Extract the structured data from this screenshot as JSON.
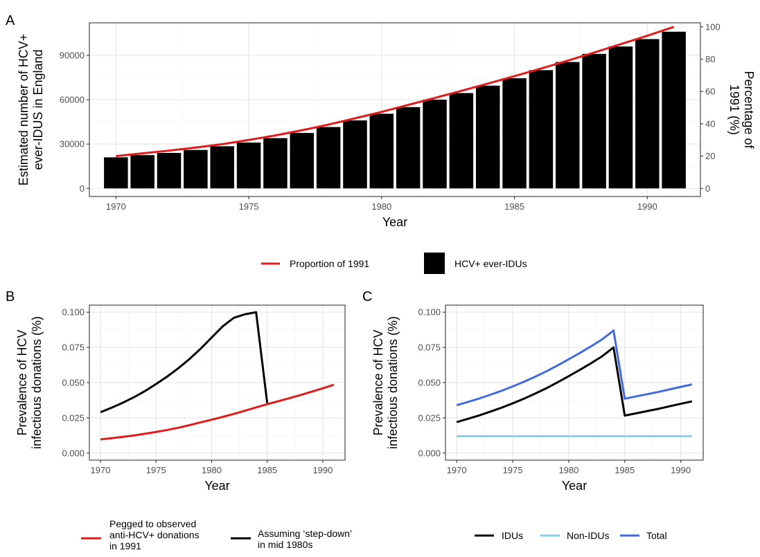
{
  "chart_data": [
    {
      "panel_label": "A",
      "type": "bar",
      "xlabel": "Year",
      "ylabel_lines": [
        "Estimated number of HCV+",
        "ever-IDUS in England"
      ],
      "y2label_lines": [
        "Percentage of",
        "1991 (%)"
      ],
      "xlim": [
        1969,
        1992
      ],
      "ylim": [
        -5500,
        112000
      ],
      "y2lim": [
        -5,
        102.5
      ],
      "xticks": [
        1970,
        1975,
        1980,
        1985,
        1990
      ],
      "xtick_labels": [
        "1970",
        "1975",
        "1980",
        "1985",
        "1990"
      ],
      "yticks": [
        0,
        30000,
        60000,
        90000
      ],
      "ytick_labels": [
        "0",
        "30000",
        "60000",
        "90000"
      ],
      "y2ticks": [
        0,
        20,
        40,
        60,
        80,
        100
      ],
      "y2tick_labels": [
        "0",
        "20",
        "40",
        "60",
        "80",
        "100"
      ],
      "grid": true,
      "legend_position": "bottom",
      "categories": [
        1970,
        1971,
        1972,
        1973,
        1974,
        1975,
        1976,
        1977,
        1978,
        1979,
        1980,
        1981,
        1982,
        1983,
        1984,
        1985,
        1986,
        1987,
        1988,
        1989,
        1990,
        1991
      ],
      "series": [
        {
          "name": "HCV+ ever-IDUs",
          "type": "bar",
          "color": "#000000",
          "values": [
            21000,
            22500,
            24000,
            26000,
            28500,
            31000,
            34000,
            37500,
            41500,
            46000,
            50500,
            55000,
            60000,
            64500,
            69500,
            74500,
            80000,
            85500,
            91000,
            96000,
            101000,
            106000
          ]
        },
        {
          "name": "Proportion of 1991",
          "type": "line",
          "axis": "right",
          "color": "#e31a1c",
          "values": [
            20,
            21.7,
            23.4,
            25.3,
            27.4,
            30,
            32.8,
            36,
            39.5,
            43.4,
            47.4,
            51.7,
            56,
            60.4,
            64.9,
            69.5,
            74.2,
            79.1,
            84.1,
            89.3,
            94.5,
            100
          ]
        }
      ]
    },
    {
      "panel_label": "B",
      "type": "line",
      "xlabel": "Year",
      "ylabel_lines": [
        "Prevalence of HCV",
        "infectious donations (%)"
      ],
      "xlim": [
        1969,
        1992
      ],
      "ylim": [
        -0.005,
        0.105
      ],
      "xticks": [
        1970,
        1975,
        1980,
        1985,
        1990
      ],
      "xtick_labels": [
        "1970",
        "1975",
        "1980",
        "1985",
        "1990"
      ],
      "yticks": [
        0,
        0.025,
        0.05,
        0.075,
        0.1
      ],
      "ytick_labels": [
        "0.000",
        "0.025",
        "0.050",
        "0.075",
        "0.100"
      ],
      "grid": true,
      "legend_position": "bottom",
      "series": [
        {
          "name": "Pegged to observed anti-HCV+ donations in 1991",
          "legend_lines": [
            "Pegged to observed",
            "anti-HCV+ donations",
            "in 1991"
          ],
          "color": "#e31a1c",
          "x": [
            1970,
            1971,
            1972,
            1973,
            1974,
            1975,
            1976,
            1977,
            1978,
            1979,
            1980,
            1981,
            1982,
            1983,
            1984,
            1985,
            1986,
            1987,
            1988,
            1989,
            1990,
            1991
          ],
          "y": [
            0.0097,
            0.0106,
            0.0115,
            0.0125,
            0.0137,
            0.015,
            0.0164,
            0.018,
            0.0198,
            0.0218,
            0.0237,
            0.0257,
            0.0278,
            0.0301,
            0.0324,
            0.0347,
            0.0368,
            0.039,
            0.0412,
            0.0436,
            0.046,
            0.0485
          ]
        },
        {
          "name": "Assuming 'step-down' in mid 1980s",
          "legend_lines": [
            "Assuming ‘step-down’",
            "in mid 1980s"
          ],
          "color": "#000000",
          "x": [
            1970,
            1971,
            1972,
            1973,
            1974,
            1975,
            1976,
            1977,
            1978,
            1979,
            1980,
            1981,
            1982,
            1983,
            1984,
            1985
          ],
          "y": [
            0.029,
            0.0322,
            0.0357,
            0.0396,
            0.044,
            0.049,
            0.0543,
            0.0602,
            0.0667,
            0.074,
            0.082,
            0.09,
            0.096,
            0.0985,
            0.1,
            0.0355
          ]
        }
      ]
    },
    {
      "panel_label": "C",
      "type": "line",
      "xlabel": "Year",
      "ylabel_lines": [
        "Prevalence of HCV",
        "infectious donations (%)"
      ],
      "xlim": [
        1969,
        1992
      ],
      "ylim": [
        -0.005,
        0.105
      ],
      "xticks": [
        1970,
        1975,
        1980,
        1985,
        1990
      ],
      "xtick_labels": [
        "1970",
        "1975",
        "1980",
        "1985",
        "1990"
      ],
      "yticks": [
        0,
        0.025,
        0.05,
        0.075,
        0.1
      ],
      "ytick_labels": [
        "0.000",
        "0.025",
        "0.050",
        "0.075",
        "0.100"
      ],
      "grid": true,
      "legend_position": "bottom",
      "series": [
        {
          "name": "IDUs",
          "legend_lines": [
            "IDUs"
          ],
          "color": "#000000",
          "x": [
            1970,
            1971,
            1972,
            1973,
            1974,
            1975,
            1976,
            1977,
            1978,
            1979,
            1980,
            1981,
            1982,
            1983,
            1984,
            1985,
            1986,
            1987,
            1988,
            1989,
            1990,
            1991
          ],
          "y": [
            0.022,
            0.0243,
            0.0267,
            0.0294,
            0.0322,
            0.0353,
            0.0386,
            0.0422,
            0.046,
            0.0502,
            0.0546,
            0.0591,
            0.0638,
            0.0688,
            0.075,
            0.0266,
            0.0282,
            0.0298,
            0.0314,
            0.0332,
            0.035,
            0.0367
          ]
        },
        {
          "name": "Non-IDUs",
          "legend_lines": [
            "Non-IDUs"
          ],
          "color": "#87ceeb",
          "x": [
            1970,
            1991
          ],
          "y": [
            0.012,
            0.012
          ]
        },
        {
          "name": "Total",
          "legend_lines": [
            "Total"
          ],
          "color": "#4169e1",
          "x": [
            1970,
            1971,
            1972,
            1973,
            1974,
            1975,
            1976,
            1977,
            1978,
            1979,
            1980,
            1981,
            1982,
            1983,
            1984,
            1985,
            1986,
            1987,
            1988,
            1989,
            1990,
            1991
          ],
          "y": [
            0.034,
            0.0363,
            0.0387,
            0.0414,
            0.0442,
            0.0473,
            0.0506,
            0.0542,
            0.058,
            0.0622,
            0.0666,
            0.0711,
            0.0758,
            0.0808,
            0.087,
            0.0386,
            0.0402,
            0.0418,
            0.0434,
            0.0452,
            0.047,
            0.0487
          ]
        }
      ]
    }
  ]
}
